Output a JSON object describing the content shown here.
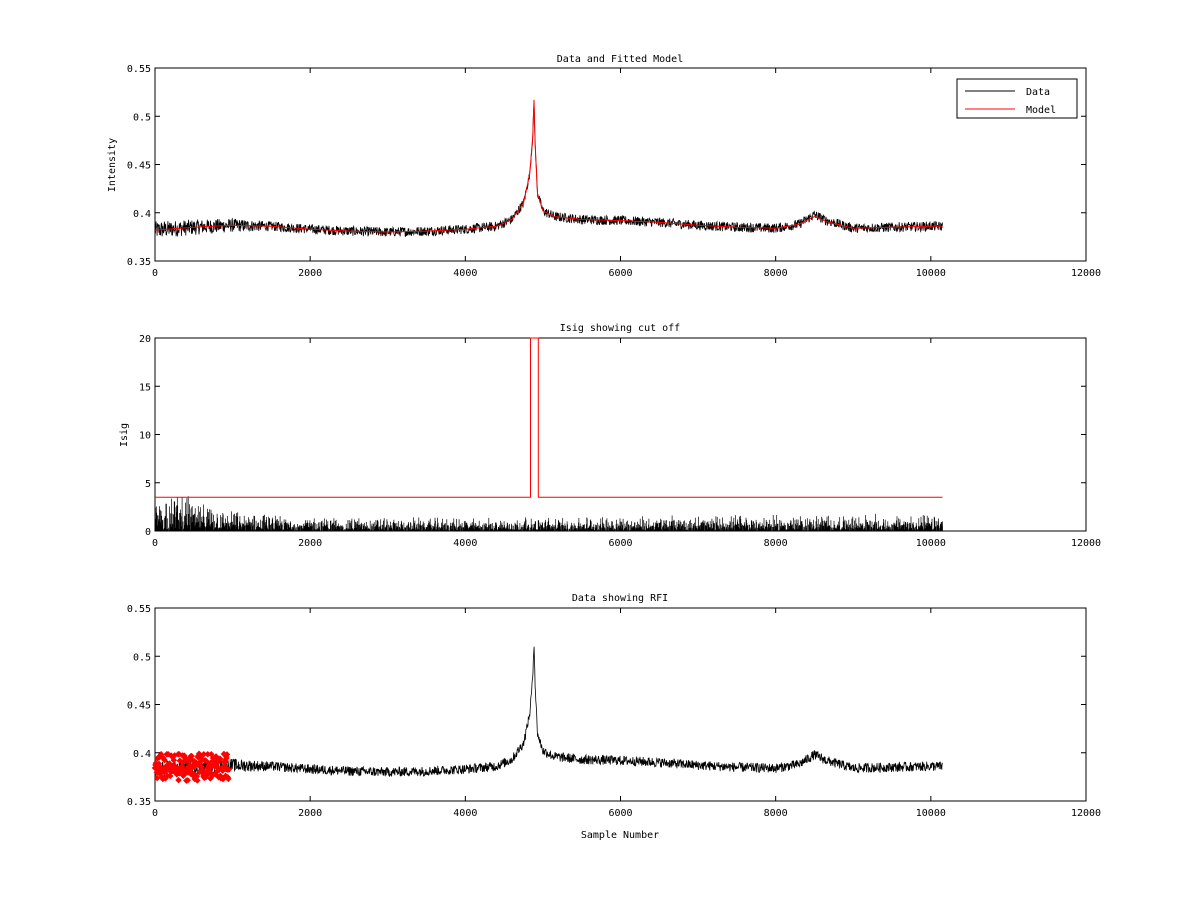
{
  "figure": {
    "background": "#ffffff"
  },
  "chart_data": [
    {
      "type": "line",
      "title": "Data and Fitted Model",
      "xlabel": "",
      "ylabel": "Intensity",
      "xlim": [
        0,
        12000
      ],
      "ylim": [
        0.35,
        0.55
      ],
      "xticks": [
        0,
        2000,
        4000,
        6000,
        8000,
        10000,
        12000
      ],
      "xtick_labels": [
        "0",
        "2000",
        "4000",
        "6000",
        "8000",
        "10000",
        "12000"
      ],
      "yticks": [
        0.35,
        0.4,
        0.45,
        0.5,
        0.55
      ],
      "ytick_labels": [
        "0.35",
        "0.4",
        "0.45",
        "0.5",
        "0.55"
      ],
      "grid": false,
      "legend_position": "top-right",
      "legend": [
        "Data",
        "Model"
      ],
      "series": [
        {
          "name": "Data",
          "color": "#000000",
          "style": "noisy-line",
          "x": [
            0,
            500,
            1000,
            1500,
            2000,
            2500,
            3000,
            3500,
            4000,
            4400,
            4600,
            4750,
            4830,
            4870,
            4885,
            4900,
            4930,
            5000,
            5150,
            5500,
            6000,
            6500,
            7000,
            7500,
            8000,
            8300,
            8500,
            8650,
            9000,
            9500,
            10000,
            10150
          ],
          "values": [
            0.382,
            0.385,
            0.387,
            0.386,
            0.383,
            0.381,
            0.38,
            0.381,
            0.383,
            0.386,
            0.393,
            0.41,
            0.44,
            0.48,
            0.515,
            0.47,
            0.42,
            0.402,
            0.396,
            0.393,
            0.392,
            0.39,
            0.387,
            0.385,
            0.384,
            0.388,
            0.398,
            0.392,
            0.384,
            0.385,
            0.386,
            0.386
          ],
          "noise_amplitude": [
            0.009,
            0.008,
            0.007,
            0.005,
            0.005,
            0.005,
            0.005,
            0.005,
            0.005,
            0.005,
            0.005,
            0.005,
            0.004,
            0.003,
            0.003,
            0.003,
            0.004,
            0.005,
            0.005,
            0.005,
            0.005,
            0.005,
            0.005,
            0.005,
            0.005,
            0.005,
            0.005,
            0.005,
            0.005,
            0.005,
            0.005,
            0.005
          ]
        },
        {
          "name": "Model",
          "color": "#ff0000",
          "style": "line",
          "x": [
            0,
            500,
            1000,
            1500,
            2000,
            2500,
            3000,
            3500,
            4000,
            4400,
            4600,
            4750,
            4830,
            4870,
            4885,
            4900,
            4930,
            5000,
            5150,
            5500,
            6000,
            6500,
            7000,
            7500,
            8000,
            8300,
            8500,
            8650,
            9000,
            9500,
            10000,
            10150
          ],
          "values": [
            0.382,
            0.385,
            0.387,
            0.386,
            0.383,
            0.381,
            0.38,
            0.381,
            0.383,
            0.386,
            0.393,
            0.41,
            0.44,
            0.48,
            0.517,
            0.47,
            0.42,
            0.402,
            0.396,
            0.393,
            0.392,
            0.39,
            0.387,
            0.385,
            0.384,
            0.388,
            0.396,
            0.391,
            0.384,
            0.385,
            0.386,
            0.386
          ]
        }
      ]
    },
    {
      "type": "line",
      "title": "Isig showing cut off",
      "xlabel": "",
      "ylabel": "Isig",
      "xlim": [
        0,
        12000
      ],
      "ylim": [
        0,
        20
      ],
      "xticks": [
        0,
        2000,
        4000,
        6000,
        8000,
        10000,
        12000
      ],
      "xtick_labels": [
        "0",
        "2000",
        "4000",
        "6000",
        "8000",
        "10000",
        "12000"
      ],
      "yticks": [
        0,
        5,
        10,
        15,
        20
      ],
      "ytick_labels": [
        "0",
        "5",
        "10",
        "15",
        "20"
      ],
      "grid": false,
      "series": [
        {
          "color": "#000000",
          "style": "noisy-bars",
          "x": [
            0,
            200,
            400,
            600,
            1000,
            1500,
            2000,
            3000,
            4000,
            5000,
            6000,
            7000,
            8000,
            9000,
            10000,
            10150
          ],
          "values": [
            2.5,
            3.0,
            3.0,
            2.0,
            1.5,
            1.2,
            1.1,
            1.0,
            1.0,
            1.0,
            1.1,
            1.2,
            1.2,
            1.2,
            1.2,
            1.2
          ]
        },
        {
          "color": "#ff0000",
          "style": "line",
          "x": [
            0,
            4840,
            4840,
            4940,
            4940,
            10150
          ],
          "values": [
            3.5,
            3.5,
            20,
            20,
            3.5,
            3.5
          ]
        }
      ]
    },
    {
      "type": "line",
      "title": "Data showing RFI",
      "xlabel": "Sample Number",
      "ylabel": "",
      "xlim": [
        0,
        12000
      ],
      "ylim": [
        0.35,
        0.55
      ],
      "xticks": [
        0,
        2000,
        4000,
        6000,
        8000,
        10000,
        12000
      ],
      "xtick_labels": [
        "0",
        "2000",
        "4000",
        "6000",
        "8000",
        "10000",
        "12000"
      ],
      "yticks": [
        0.35,
        0.4,
        0.45,
        0.5,
        0.55
      ],
      "ytick_labels": [
        "0.35",
        "0.4",
        "0.45",
        "0.5",
        "0.55"
      ],
      "grid": false,
      "series": [
        {
          "color": "#000000",
          "style": "noisy-line",
          "x": [
            0,
            500,
            1000,
            1500,
            2000,
            2500,
            3000,
            3500,
            4000,
            4400,
            4600,
            4750,
            4830,
            4870,
            4885,
            4900,
            4930,
            5000,
            5150,
            5500,
            6000,
            6500,
            7000,
            7500,
            8000,
            8300,
            8500,
            8650,
            9000,
            9500,
            10000,
            10150
          ],
          "values": [
            0.382,
            0.385,
            0.387,
            0.386,
            0.383,
            0.381,
            0.38,
            0.381,
            0.383,
            0.386,
            0.393,
            0.41,
            0.44,
            0.48,
            0.515,
            0.47,
            0.42,
            0.402,
            0.396,
            0.393,
            0.392,
            0.39,
            0.387,
            0.385,
            0.384,
            0.388,
            0.398,
            0.392,
            0.384,
            0.385,
            0.386,
            0.386
          ],
          "noise_amplitude": [
            0.009,
            0.008,
            0.007,
            0.005,
            0.005,
            0.005,
            0.005,
            0.005,
            0.005,
            0.005,
            0.005,
            0.005,
            0.004,
            0.003,
            0.003,
            0.003,
            0.004,
            0.005,
            0.005,
            0.005,
            0.005,
            0.005,
            0.005,
            0.005,
            0.005,
            0.005,
            0.005,
            0.005,
            0.005,
            0.005,
            0.005,
            0.005
          ]
        },
        {
          "color": "#ff0000",
          "style": "markers",
          "marker": "diamond",
          "x_range": [
            0,
            950
          ],
          "center": 0.385,
          "spread": 0.014
        }
      ]
    }
  ]
}
